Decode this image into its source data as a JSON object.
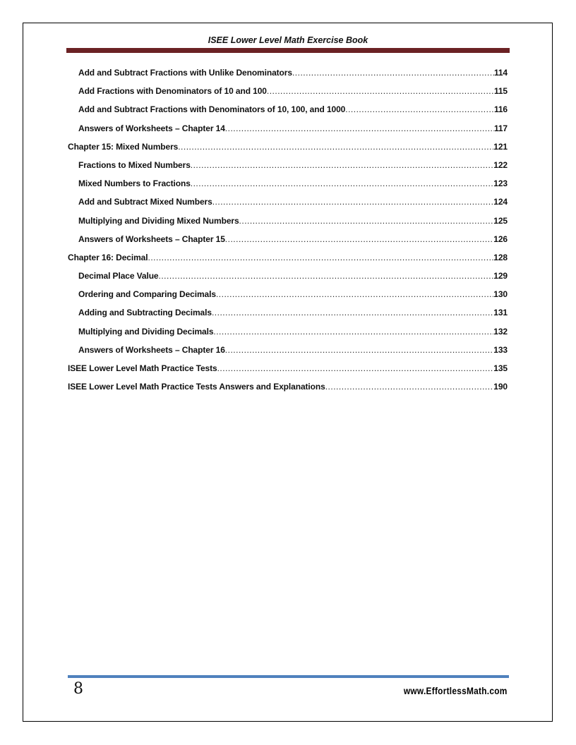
{
  "header": {
    "title": "ISEE Lower Level Math Exercise Book",
    "bar_color": "#6b2224"
  },
  "toc": [
    {
      "level": 2,
      "title": "Add and Subtract Fractions with Unlike Denominators ",
      "page": "114"
    },
    {
      "level": 2,
      "title": "Add Fractions with Denominators of 10 and 100",
      "page": "115"
    },
    {
      "level": 2,
      "title": "Add and Subtract Fractions with Denominators of 10, 100, and 1000 ",
      "page": "116"
    },
    {
      "level": 2,
      "title": "Answers of Worksheets – Chapter 14",
      "page": "117"
    },
    {
      "level": 1,
      "title": "Chapter 15:  Mixed Numbers",
      "page": "121"
    },
    {
      "level": 2,
      "title": "Fractions to Mixed Numbers ",
      "page": "122"
    },
    {
      "level": 2,
      "title": "Mixed Numbers to Fractions ",
      "page": "123"
    },
    {
      "level": 2,
      "title": "Add and Subtract Mixed Numbers",
      "page": "124"
    },
    {
      "level": 2,
      "title": "Multiplying and Dividing Mixed Numbers ",
      "page": "125"
    },
    {
      "level": 2,
      "title": "Answers of Worksheets – Chapter 15",
      "page": "126"
    },
    {
      "level": 1,
      "title": "Chapter 16:  Decimal",
      "page": "128"
    },
    {
      "level": 2,
      "title": "Decimal Place Value",
      "page": "129"
    },
    {
      "level": 2,
      "title": "Ordering and Comparing Decimals",
      "page": "130"
    },
    {
      "level": 2,
      "title": "Adding and Subtracting Decimals ",
      "page": "131"
    },
    {
      "level": 2,
      "title": "Multiplying and Dividing Decimals",
      "page": "132"
    },
    {
      "level": 2,
      "title": "Answers of Worksheets – Chapter 16",
      "page": "133"
    },
    {
      "level": 1,
      "title": "ISEE Lower Level Math Practice Tests",
      "page": "135"
    },
    {
      "level": 1,
      "title": "ISEE Lower Level Math Practice Tests Answers and Explanations",
      "page": "190"
    }
  ],
  "footer": {
    "page_number": "8",
    "website": "www.EffortlessMath.com",
    "bar_color": "#4f81bd"
  }
}
